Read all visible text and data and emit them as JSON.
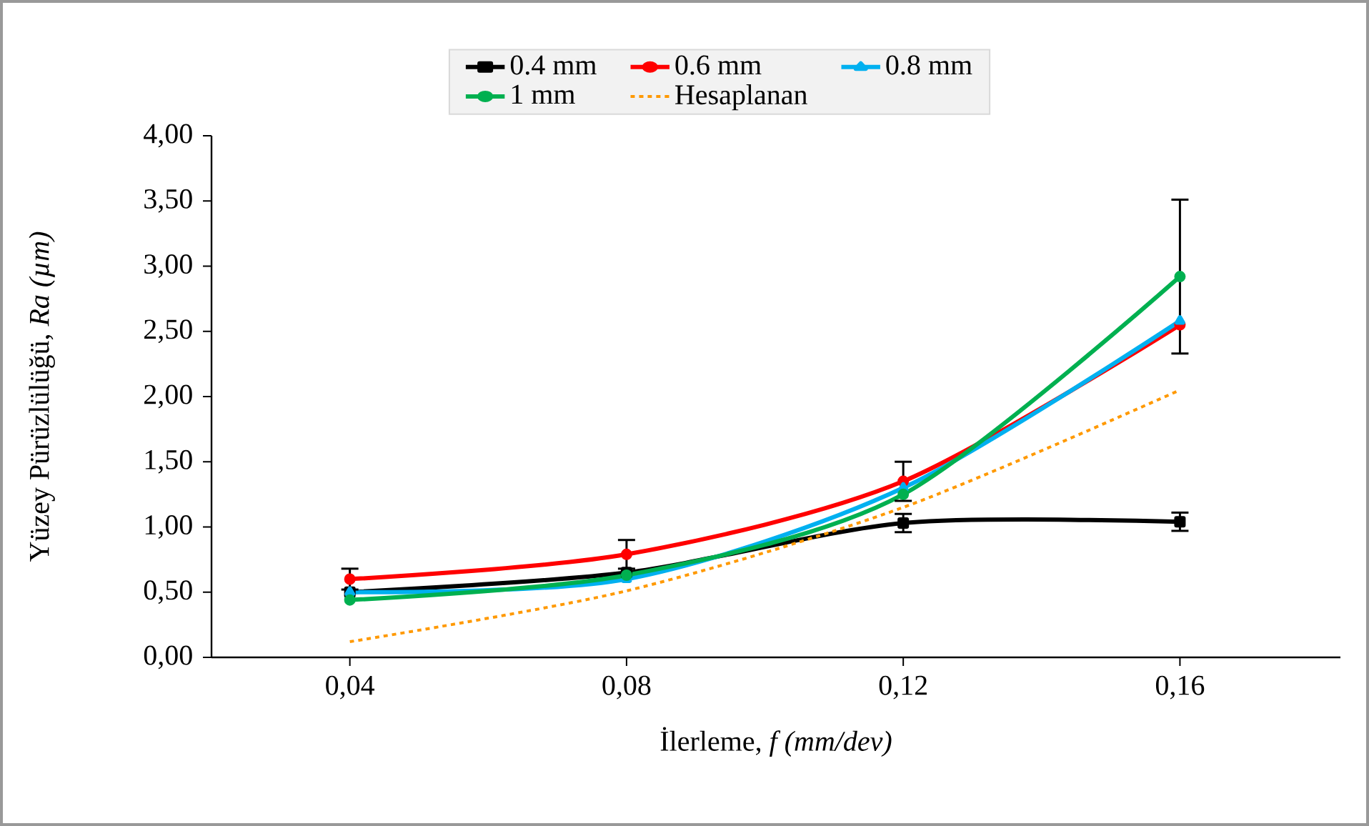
{
  "chart_data": {
    "type": "line",
    "xlabel": "İlerleme, *f (mm/dev)*",
    "ylabel": "Yüzey Pürüzlülüğü, *Ra (µm)*",
    "categories": [
      "0,04",
      "0,08",
      "0,12",
      "0,16"
    ],
    "ylim": [
      0,
      4
    ],
    "yticks": [
      {
        "value": 0,
        "label": "0,00"
      },
      {
        "value": 0.5,
        "label": "0,50"
      },
      {
        "value": 1,
        "label": "1,00"
      },
      {
        "value": 1.5,
        "label": "1,50"
      },
      {
        "value": 2,
        "label": "2,00"
      },
      {
        "value": 2.5,
        "label": "2,50"
      },
      {
        "value": 3,
        "label": "3,00"
      },
      {
        "value": 3.5,
        "label": "3,50"
      },
      {
        "value": 4,
        "label": "4,00"
      }
    ],
    "grid": false,
    "legend": "top",
    "series": [
      {
        "name": "0.4 mm",
        "color": "#000000",
        "marker": "square",
        "line_style": "solid",
        "values": [
          0.5,
          0.65,
          1.03,
          1.04
        ],
        "errors": [
          null,
          null,
          0.07,
          0.07
        ]
      },
      {
        "name": "0.6 mm",
        "color": "#ff0000",
        "marker": "circle",
        "line_style": "solid",
        "values": [
          0.6,
          0.79,
          1.35,
          2.55
        ],
        "errors": [
          0.08,
          0.11,
          0.15,
          null
        ]
      },
      {
        "name": "0.8 mm",
        "color": "#00b0f0",
        "marker": "triangle",
        "line_style": "solid",
        "values": [
          0.5,
          0.6,
          1.3,
          2.58
        ]
      },
      {
        "name": "1 mm",
        "color": "#00b050",
        "marker": "circle",
        "line_style": "solid",
        "values": [
          0.44,
          0.63,
          1.25,
          2.92
        ],
        "errors": [
          null,
          null,
          null,
          0.59
        ]
      },
      {
        "name": "Hesaplanan",
        "color": "#ff9900",
        "marker": "none",
        "line_style": "dashed",
        "values": [
          0.12,
          0.51,
          1.15,
          2.05
        ]
      }
    ]
  }
}
